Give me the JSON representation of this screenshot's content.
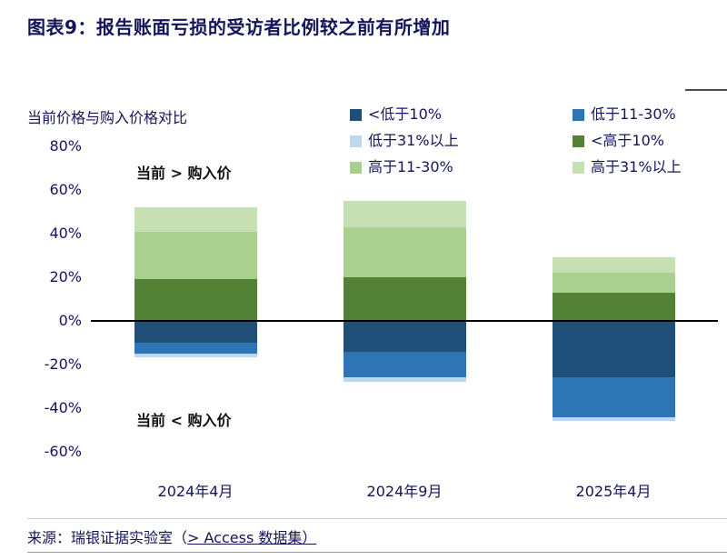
{
  "page": {
    "title": "图表9：报告账面亏损的受访者比例较之前有所增加",
    "source_prefix": "来源：瑞银证据实验室（",
    "source_link": "> Access 数据集）"
  },
  "chart": {
    "axis_label": "当前价格与购入价格对比",
    "annotation_above": "当前 > 购入价",
    "annotation_below": "当前 < 购入价"
  },
  "chart_data": {
    "type": "bar",
    "stacked": true,
    "title": "当前价格与购入价格对比",
    "categories": [
      "2024年4月",
      "2024年9月",
      "2025年4月"
    ],
    "series": [
      {
        "name": "<低于10%",
        "color": "#1F4E79",
        "values": [
          -10,
          -14,
          -26
        ]
      },
      {
        "name": "低于11-30%",
        "color": "#2E75B6",
        "values": [
          -5,
          -12,
          -18
        ]
      },
      {
        "name": "低于31%以上",
        "color": "#BDD7EE",
        "values": [
          -1.5,
          -2,
          -2
        ]
      },
      {
        "name": "<高于10%",
        "color": "#538135",
        "values": [
          19,
          20,
          13
        ]
      },
      {
        "name": "高于11-30%",
        "color": "#A9D08E",
        "values": [
          22,
          23,
          9
        ]
      },
      {
        "name": "高于31%以上",
        "color": "#C6E0B4",
        "values": [
          11,
          12,
          7
        ]
      }
    ],
    "ylim": [
      -60,
      80
    ],
    "yticks": [
      80,
      60,
      40,
      20,
      0,
      -20,
      -40,
      -60
    ],
    "ytick_labels": [
      "80%",
      "60%",
      "40%",
      "20%",
      "0%",
      "-20%",
      "-40%",
      "-60%"
    ],
    "legend_position": "top-right",
    "grid": false,
    "zero_line": true
  }
}
